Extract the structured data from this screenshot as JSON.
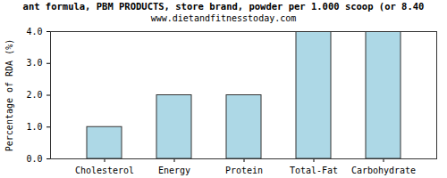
{
  "chart_data": {
    "type": "bar",
    "title": "ant formula, PBM PRODUCTS, store brand, powder per 1.000 scoop (or 8.40",
    "subtitle": "www.dietandfitnesstoday.com",
    "y_label": "Percentage of RDA (%)",
    "categories": [
      "Cholesterol",
      "Energy",
      "Protein",
      "Total-Fat",
      "Carbohydrate"
    ],
    "values": [
      1,
      2,
      2,
      4,
      4
    ],
    "color": "#add8e6",
    "ylim": [
      0,
      4
    ],
    "yticks": [
      {
        "value": 0,
        "label": "0.0"
      },
      {
        "value": 1,
        "label": "1.0"
      },
      {
        "value": 2,
        "label": "2.0"
      },
      {
        "value": 3,
        "label": "3.0"
      },
      {
        "value": 4,
        "label": "4.0"
      }
    ],
    "grid": false
  }
}
